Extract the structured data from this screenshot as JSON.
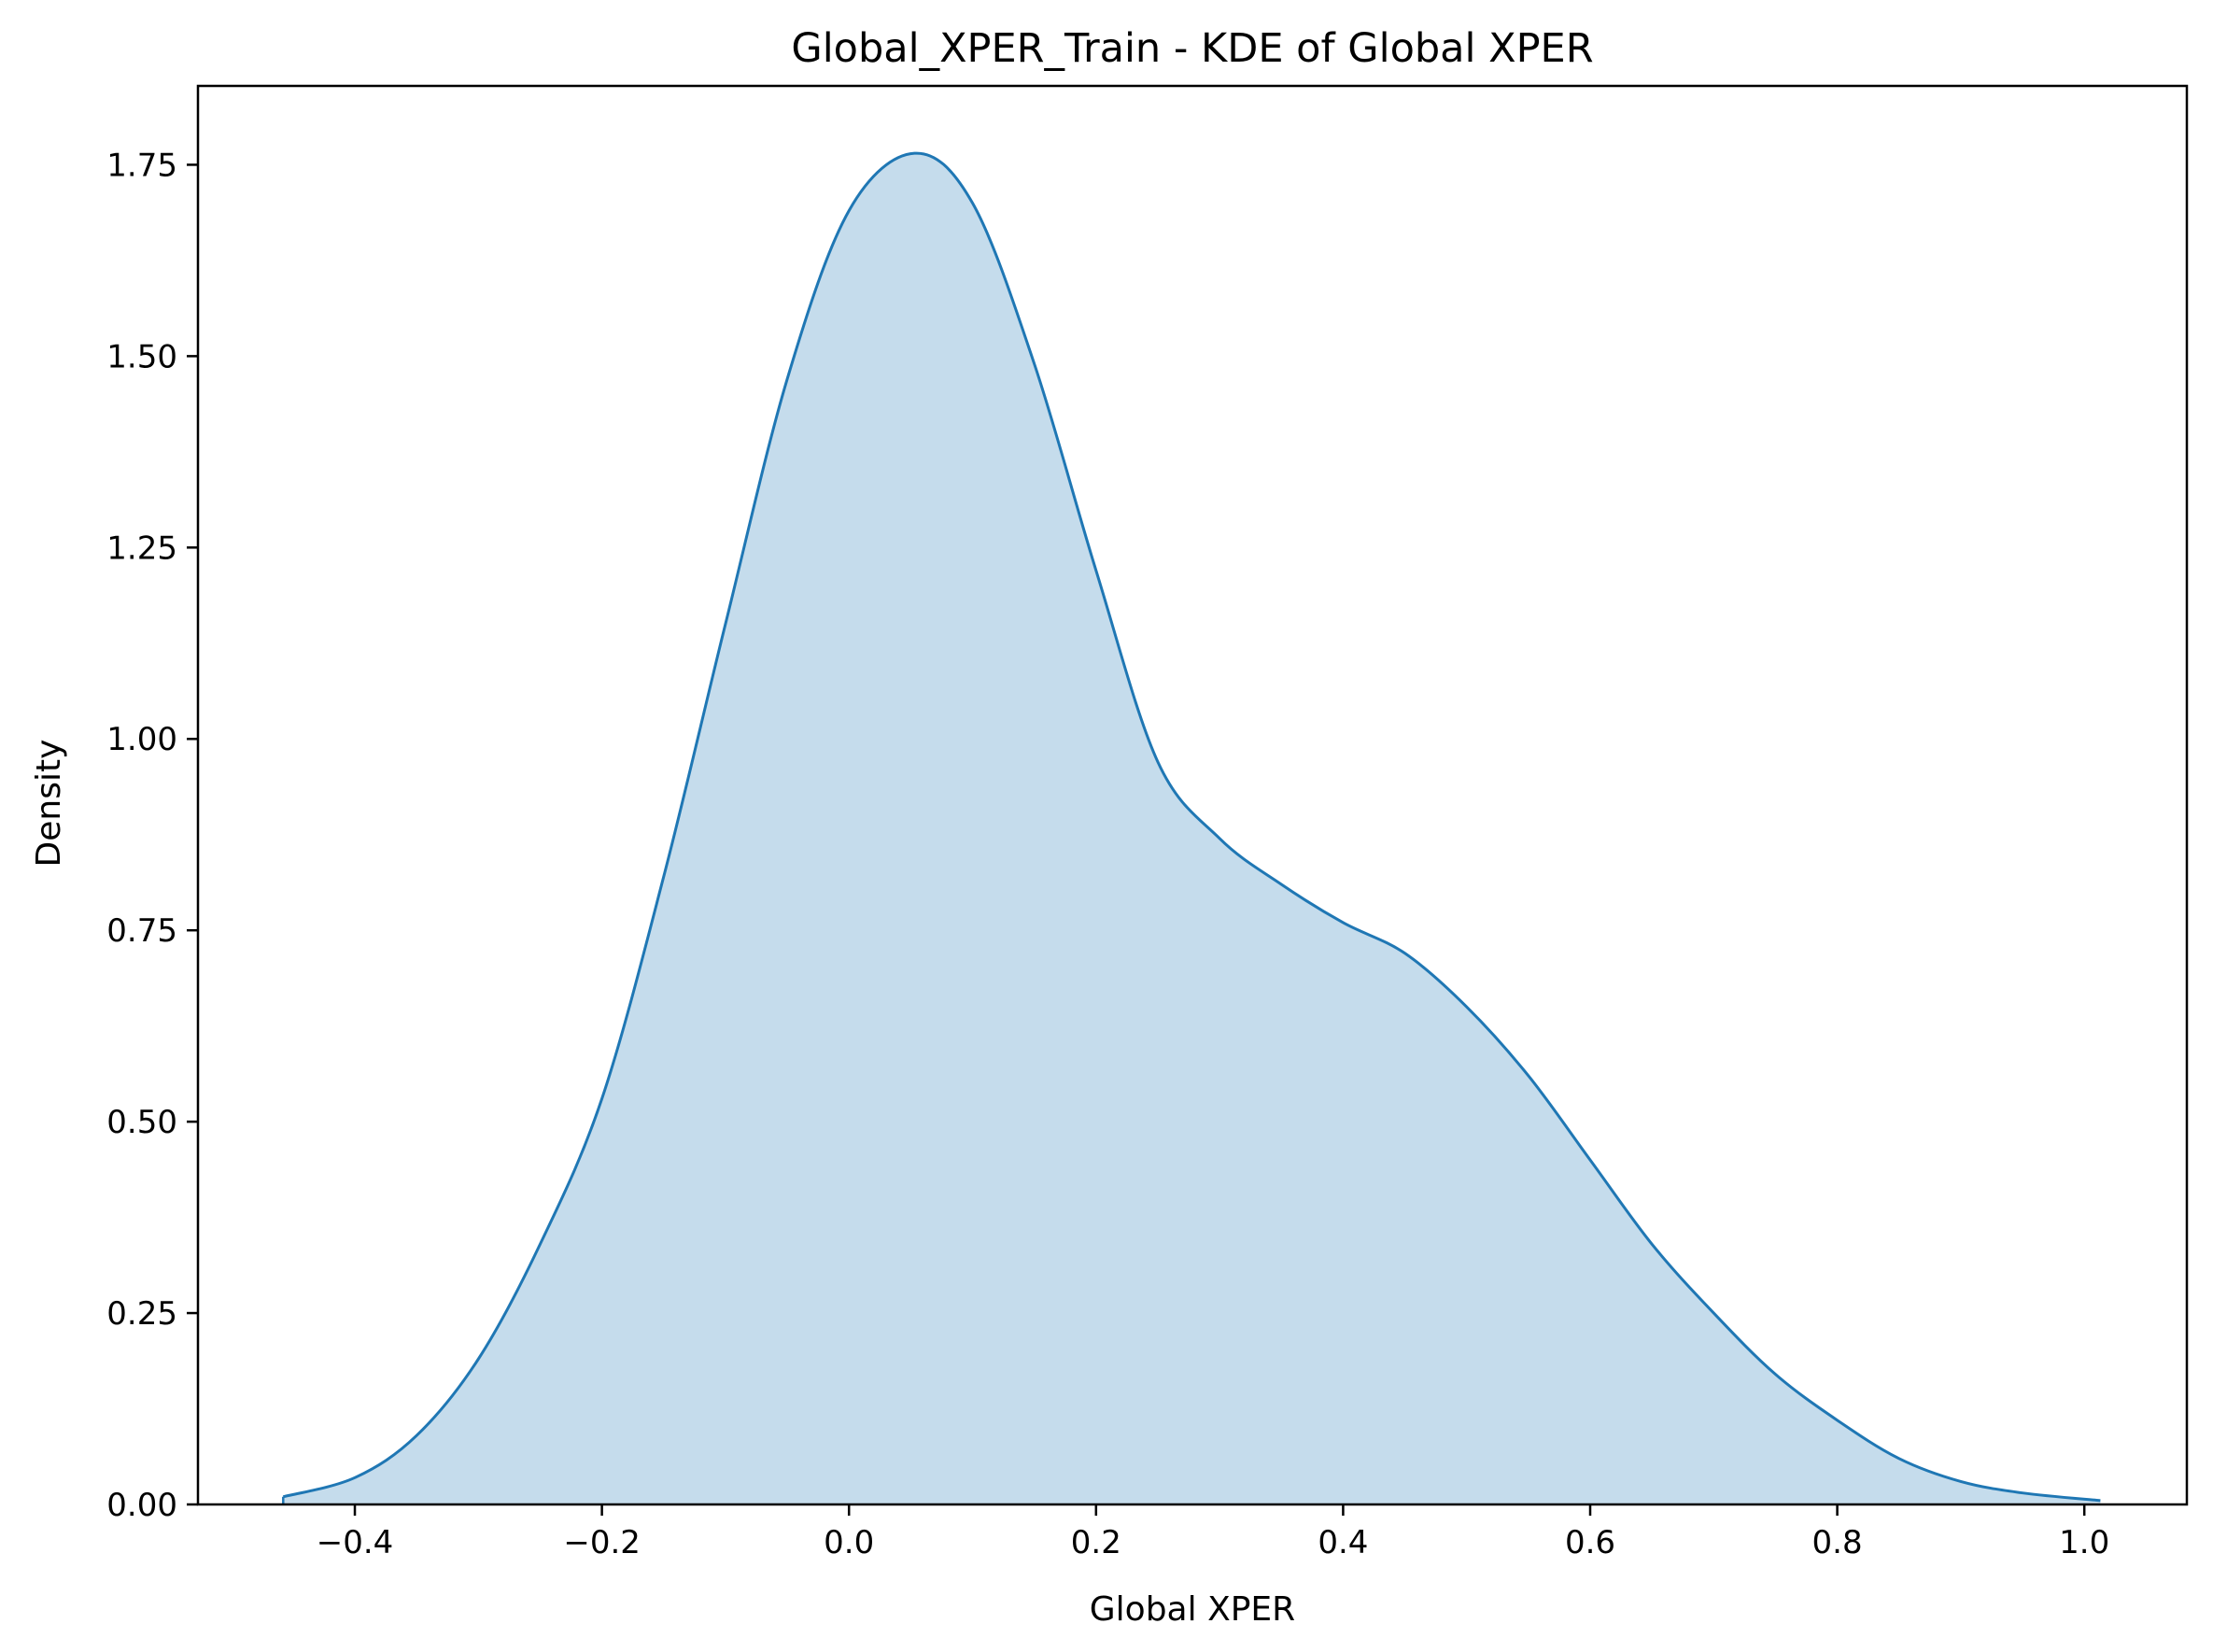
{
  "chart_data": {
    "type": "area",
    "title": "Global_XPER_Train - KDE of Global XPER",
    "xlabel": "Global XPER",
    "ylabel": "Density",
    "xlim": [
      -0.527,
      1.083
    ],
    "ylim": [
      0.0,
      1.853
    ],
    "xticks": [
      -0.4,
      -0.2,
      0.0,
      0.2,
      0.4,
      0.6,
      0.8,
      1.0
    ],
    "xtick_labels": [
      "−0.4",
      "−0.2",
      "0.0",
      "0.2",
      "0.4",
      "0.6",
      "0.8",
      "1.0"
    ],
    "yticks": [
      0.0,
      0.25,
      0.5,
      0.75,
      1.0,
      1.25,
      1.5,
      1.75
    ],
    "ytick_labels": [
      "0.00",
      "0.25",
      "0.50",
      "0.75",
      "1.00",
      "1.25",
      "1.50",
      "1.75"
    ],
    "grid": false,
    "line_color": "#1f77b4",
    "fill_color": "#1f77b4",
    "fill_opacity": 0.26,
    "series": [
      {
        "x": [
          -0.458,
          -0.4,
          -0.35,
          -0.3,
          -0.25,
          -0.2,
          -0.15,
          -0.1,
          -0.05,
          0.0,
          0.053,
          0.1,
          0.15,
          0.2,
          0.25,
          0.3,
          0.35,
          0.4,
          0.45,
          0.5,
          0.55,
          0.6,
          0.65,
          0.7,
          0.75,
          0.8,
          0.85,
          0.9,
          0.95,
          1.013
        ],
        "y": [
          0.01,
          0.035,
          0.09,
          0.19,
          0.34,
          0.53,
          0.82,
          1.15,
          1.47,
          1.69,
          1.765,
          1.7,
          1.49,
          1.22,
          0.97,
          0.87,
          0.81,
          0.76,
          0.72,
          0.65,
          0.56,
          0.45,
          0.34,
          0.25,
          0.17,
          0.11,
          0.06,
          0.03,
          0.015,
          0.005
        ]
      }
    ]
  }
}
